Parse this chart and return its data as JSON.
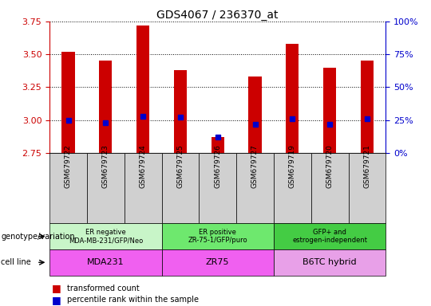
{
  "title": "GDS4067 / 236370_at",
  "samples": [
    "GSM679722",
    "GSM679723",
    "GSM679724",
    "GSM679725",
    "GSM679726",
    "GSM679727",
    "GSM679719",
    "GSM679720",
    "GSM679721"
  ],
  "transformed_counts": [
    3.52,
    3.45,
    3.72,
    3.38,
    2.87,
    3.33,
    3.58,
    3.4,
    3.45
  ],
  "percentile_ranks": [
    3.0,
    2.98,
    3.03,
    3.02,
    2.87,
    2.97,
    3.01,
    2.97,
    3.01
  ],
  "bar_bottom": 2.75,
  "ylim": [
    2.75,
    3.75
  ],
  "ylim2": [
    0,
    100
  ],
  "yticks": [
    2.75,
    3.0,
    3.25,
    3.5,
    3.75
  ],
  "yticks2": [
    0,
    25,
    50,
    75,
    100
  ],
  "groups": [
    {
      "label": "ER negative\nMDA-MB-231/GFP/Neo",
      "start": 0,
      "end": 3,
      "color": "#c8f5c8"
    },
    {
      "label": "ER positive\nZR-75-1/GFP/puro",
      "start": 3,
      "end": 6,
      "color": "#6ee86e"
    },
    {
      "label": "GFP+ and\nestrogen-independent",
      "start": 6,
      "end": 9,
      "color": "#44cc44"
    }
  ],
  "cell_lines": [
    {
      "label": "MDA231",
      "start": 0,
      "end": 3,
      "color": "#f060f0"
    },
    {
      "label": "ZR75",
      "start": 3,
      "end": 6,
      "color": "#f060f0"
    },
    {
      "label": "B6TC hybrid",
      "start": 6,
      "end": 9,
      "color": "#e8a0e8"
    }
  ],
  "bar_color": "#cc0000",
  "dot_color": "#0000cc",
  "tick_color_left": "#cc0000",
  "tick_color_right": "#0000cc",
  "sample_bg_color": "#d0d0d0",
  "plot_bg_color": "#ffffff"
}
